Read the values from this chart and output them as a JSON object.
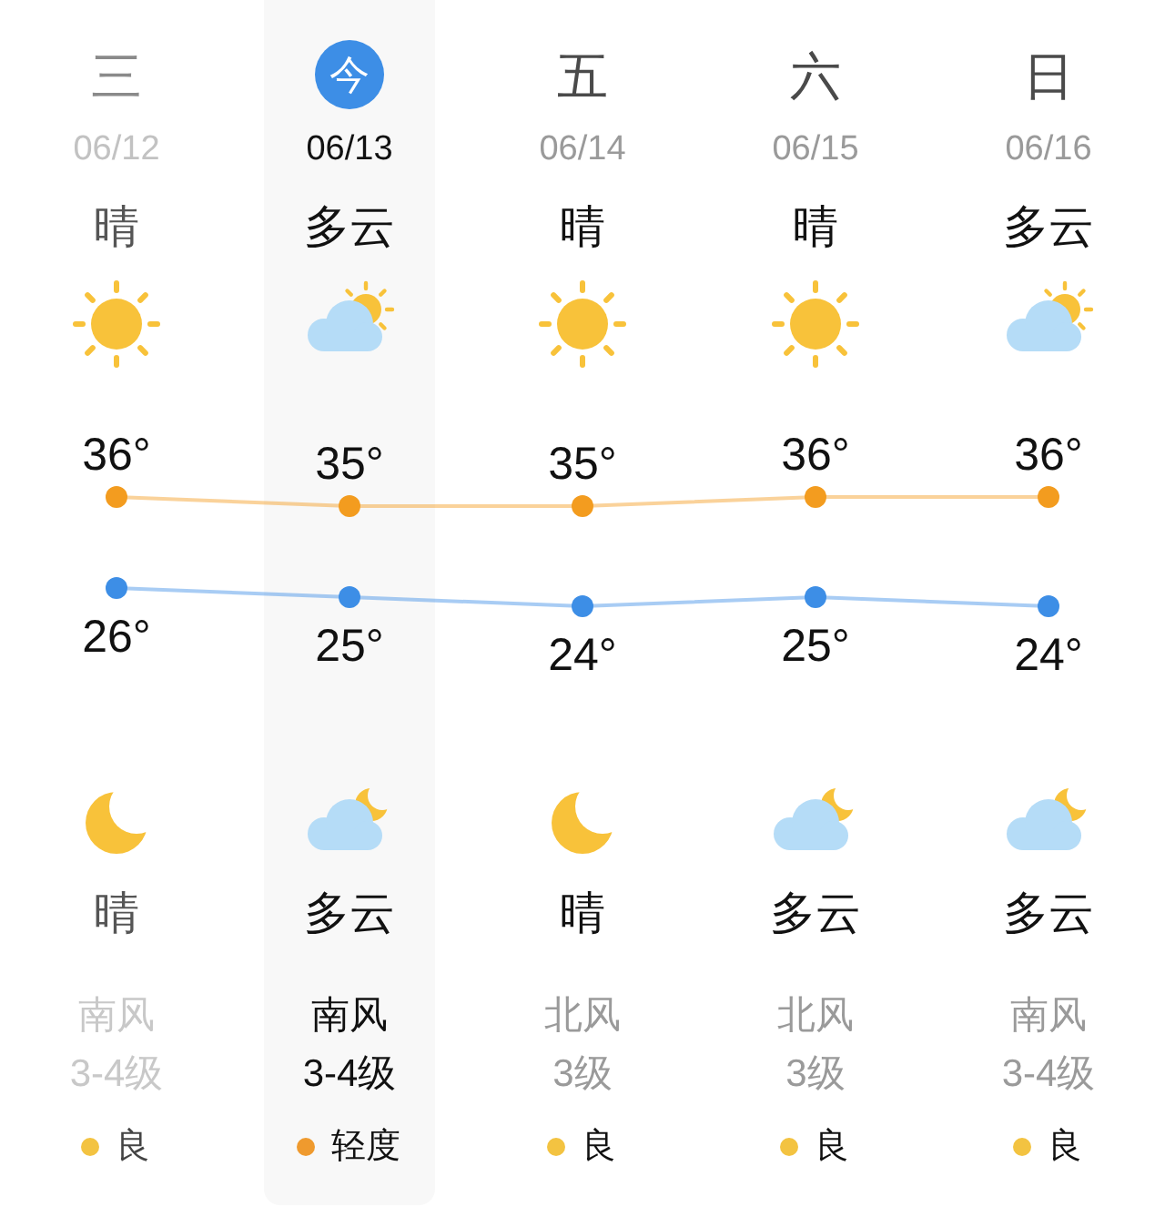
{
  "chart_data": {
    "type": "line",
    "categories": [
      "06/12",
      "06/13",
      "06/14",
      "06/15",
      "06/16"
    ],
    "series": [
      {
        "color": "#f39c1f",
        "values": [
          36,
          35,
          35,
          36,
          36
        ],
        "value_labels": [
          "36°",
          "35°",
          "35°",
          "36°",
          "36°"
        ]
      },
      {
        "color": "#3d8ee6",
        "values": [
          26,
          25,
          24,
          25,
          24
        ],
        "value_labels": [
          "26°",
          "25°",
          "24°",
          "25°",
          "24°"
        ]
      }
    ],
    "marker": "circle",
    "tick_labels": "x",
    "bands": [
      {
        "axis": "x",
        "from": "06/13",
        "to": "06/13",
        "color": "#f8f8f8"
      }
    ],
    "annotations": [
      "三",
      "今",
      "五",
      "六",
      "日",
      "晴",
      "多云",
      "晴",
      "晴",
      "多云",
      "晴",
      "多云",
      "晴",
      "多云",
      "多云",
      "南风",
      "南风",
      "北风",
      "北风",
      "南风",
      "3-4级",
      "3-4级",
      "3级",
      "3级",
      "3-4级",
      "良",
      "轻度",
      "良",
      "良",
      "良"
    ]
  }
}
